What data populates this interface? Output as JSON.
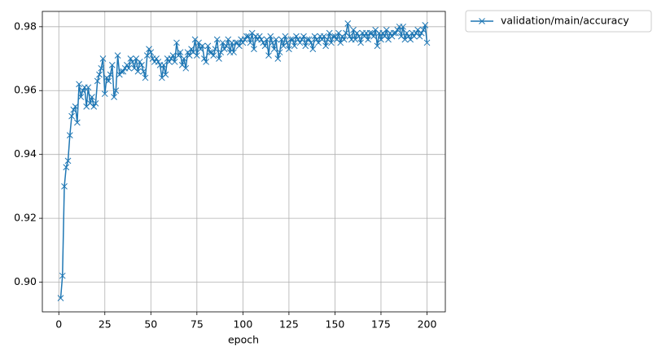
{
  "chart_data": {
    "type": "line",
    "xlabel": "epoch",
    "x": [
      1,
      2,
      3,
      4,
      5,
      6,
      7,
      8,
      9,
      10,
      11,
      12,
      13,
      14,
      15,
      16,
      17,
      18,
      19,
      20,
      21,
      22,
      23,
      24,
      25,
      26,
      27,
      28,
      29,
      30,
      31,
      32,
      33,
      34,
      35,
      36,
      37,
      38,
      39,
      40,
      41,
      42,
      43,
      44,
      45,
      46,
      47,
      48,
      49,
      50,
      51,
      52,
      53,
      54,
      55,
      56,
      57,
      58,
      59,
      60,
      61,
      62,
      63,
      64,
      65,
      66,
      67,
      68,
      69,
      70,
      71,
      72,
      73,
      74,
      75,
      76,
      77,
      78,
      79,
      80,
      81,
      82,
      83,
      84,
      85,
      86,
      87,
      88,
      89,
      90,
      91,
      92,
      93,
      94,
      95,
      96,
      97,
      98,
      99,
      100,
      101,
      102,
      103,
      104,
      105,
      106,
      107,
      108,
      109,
      110,
      111,
      112,
      113,
      114,
      115,
      116,
      117,
      118,
      119,
      120,
      121,
      122,
      123,
      124,
      125,
      126,
      127,
      128,
      129,
      130,
      131,
      132,
      133,
      134,
      135,
      136,
      137,
      138,
      139,
      140,
      141,
      142,
      143,
      144,
      145,
      146,
      147,
      148,
      149,
      150,
      151,
      152,
      153,
      154,
      155,
      156,
      157,
      158,
      159,
      160,
      161,
      162,
      163,
      164,
      165,
      166,
      167,
      168,
      169,
      170,
      171,
      172,
      173,
      174,
      175,
      176,
      177,
      178,
      179,
      180,
      181,
      182,
      183,
      184,
      185,
      186,
      187,
      188,
      189,
      190,
      191,
      192,
      193,
      194,
      195,
      196,
      197,
      198,
      199,
      200
    ],
    "series": [
      {
        "name": "validation/main/accuracy",
        "color": "#1f77b4",
        "marker": "x",
        "values": [
          0.895,
          0.902,
          0.93,
          0.936,
          0.938,
          0.946,
          0.952,
          0.954,
          0.955,
          0.95,
          0.962,
          0.958,
          0.96,
          0.961,
          0.955,
          0.961,
          0.956,
          0.958,
          0.955,
          0.956,
          0.963,
          0.965,
          0.967,
          0.97,
          0.959,
          0.964,
          0.963,
          0.965,
          0.968,
          0.958,
          0.96,
          0.971,
          0.965,
          0.966,
          0.966,
          0.967,
          0.968,
          0.967,
          0.97,
          0.969,
          0.967,
          0.97,
          0.966,
          0.969,
          0.968,
          0.966,
          0.964,
          0.971,
          0.973,
          0.972,
          0.97,
          0.969,
          0.97,
          0.969,
          0.968,
          0.964,
          0.968,
          0.965,
          0.97,
          0.969,
          0.97,
          0.971,
          0.969,
          0.975,
          0.971,
          0.972,
          0.968,
          0.97,
          0.967,
          0.972,
          0.971,
          0.973,
          0.972,
          0.976,
          0.971,
          0.975,
          0.973,
          0.974,
          0.97,
          0.969,
          0.974,
          0.972,
          0.972,
          0.971,
          0.973,
          0.976,
          0.97,
          0.972,
          0.975,
          0.973,
          0.974,
          0.976,
          0.972,
          0.975,
          0.972,
          0.975,
          0.975,
          0.974,
          0.976,
          0.975,
          0.976,
          0.977,
          0.977,
          0.975,
          0.978,
          0.973,
          0.977,
          0.976,
          0.977,
          0.976,
          0.975,
          0.974,
          0.976,
          0.971,
          0.977,
          0.975,
          0.973,
          0.976,
          0.97,
          0.972,
          0.976,
          0.974,
          0.977,
          0.975,
          0.973,
          0.976,
          0.976,
          0.974,
          0.977,
          0.976,
          0.975,
          0.976,
          0.977,
          0.974,
          0.976,
          0.976,
          0.975,
          0.973,
          0.977,
          0.976,
          0.975,
          0.977,
          0.976,
          0.977,
          0.974,
          0.976,
          0.978,
          0.975,
          0.977,
          0.977,
          0.976,
          0.978,
          0.975,
          0.977,
          0.976,
          0.978,
          0.981,
          0.977,
          0.976,
          0.979,
          0.976,
          0.978,
          0.977,
          0.975,
          0.978,
          0.977,
          0.978,
          0.976,
          0.978,
          0.978,
          0.977,
          0.979,
          0.974,
          0.978,
          0.976,
          0.978,
          0.977,
          0.979,
          0.976,
          0.978,
          0.977,
          0.978,
          0.978,
          0.979,
          0.98,
          0.977,
          0.98,
          0.976,
          0.978,
          0.977,
          0.976,
          0.978,
          0.977,
          0.978,
          0.979,
          0.977,
          0.978,
          0.979,
          0.9805,
          0.975
        ]
      }
    ],
    "xlim": [
      -8.95,
      209.95
    ],
    "xticks": [
      0,
      25,
      50,
      75,
      100,
      125,
      150,
      175,
      200
    ],
    "ylim": [
      0.8907,
      0.9848
    ],
    "yticks": [
      {
        "value": 0.9,
        "label": "0.90"
      },
      0.92,
      0.94,
      0.96,
      0.98
    ],
    "grid": true,
    "legend": "outside upper right"
  }
}
